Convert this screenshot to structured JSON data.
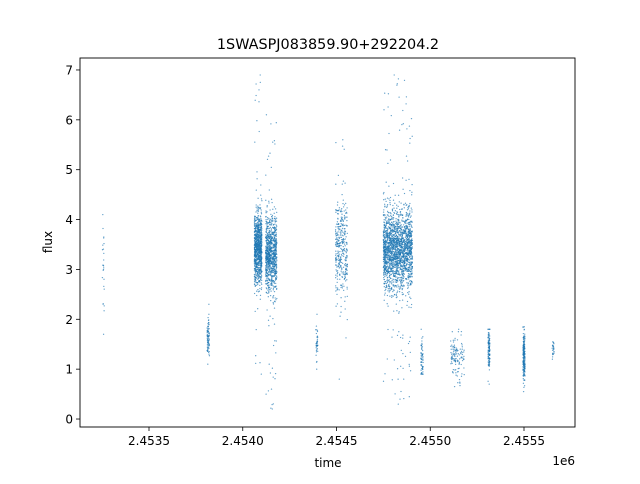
{
  "chart_data": {
    "type": "scatter",
    "title": "1SWASPJ083859.90+292204.2",
    "xlabel": "time",
    "ylabel": "flux",
    "x_offset_label": "1e6",
    "xlim": [
      2453132,
      2455772
    ],
    "ylim": [
      -0.16,
      7.24
    ],
    "x_ticks": [
      2453500,
      2454000,
      2454500,
      2455000,
      2455500
    ],
    "x_tick_labels": [
      "2.4535",
      "2.4540",
      "2.4545",
      "2.4550",
      "2.4555"
    ],
    "y_ticks": [
      0,
      1,
      2,
      3,
      4,
      5,
      6,
      7
    ],
    "y_tick_labels": [
      "0",
      "1",
      "2",
      "3",
      "4",
      "5",
      "6",
      "7"
    ],
    "grid": false,
    "marker_color": "#1f77b4",
    "clusters": [
      {
        "x_range": [
          2453250,
          2453262
        ],
        "y_median": 3.2,
        "y_spread": 0.5,
        "y_range": [
          1.7,
          4.1
        ],
        "approx_points": 25
      },
      {
        "x_range": [
          2453810,
          2453822
        ],
        "y_median": 1.6,
        "y_spread": 0.2,
        "y_range": [
          1.1,
          2.3
        ],
        "approx_points": 80
      },
      {
        "x_range": [
          2454062,
          2454102
        ],
        "y_median": 3.4,
        "y_spread": 0.35,
        "y_range": [
          0.9,
          6.9
        ],
        "approx_points": 900
      },
      {
        "x_range": [
          2454122,
          2454182
        ],
        "y_median": 3.3,
        "y_spread": 0.38,
        "y_range": [
          0.2,
          6.1
        ],
        "approx_points": 900
      },
      {
        "x_range": [
          2454390,
          2454400
        ],
        "y_median": 1.5,
        "y_spread": 0.25,
        "y_range": [
          1.0,
          2.1
        ],
        "approx_points": 40
      },
      {
        "x_range": [
          2454495,
          2454558
        ],
        "y_median": 3.4,
        "y_spread": 0.45,
        "y_range": [
          0.8,
          5.6
        ],
        "approx_points": 350
      },
      {
        "x_range": [
          2454750,
          2454905
        ],
        "y_median": 3.4,
        "y_spread": 0.4,
        "y_range": [
          0.3,
          6.9
        ],
        "approx_points": 2000
      },
      {
        "x_range": [
          2454950,
          2454962
        ],
        "y_median": 1.2,
        "y_spread": 0.2,
        "y_range": [
          0.9,
          1.8
        ],
        "approx_points": 60
      },
      {
        "x_range": [
          2455108,
          2455182
        ],
        "y_median": 1.25,
        "y_spread": 0.2,
        "y_range": [
          0.65,
          1.8
        ],
        "approx_points": 120
      },
      {
        "x_range": [
          2455308,
          2455318
        ],
        "y_median": 1.4,
        "y_spread": 0.2,
        "y_range": [
          0.7,
          1.8
        ],
        "approx_points": 120
      },
      {
        "x_range": [
          2455495,
          2455505
        ],
        "y_median": 1.25,
        "y_spread": 0.22,
        "y_range": [
          0.55,
          1.85
        ],
        "approx_points": 200
      },
      {
        "x_range": [
          2455650,
          2455660
        ],
        "y_median": 1.35,
        "y_spread": 0.1,
        "y_range": [
          1.2,
          1.55
        ],
        "approx_points": 25
      }
    ]
  }
}
